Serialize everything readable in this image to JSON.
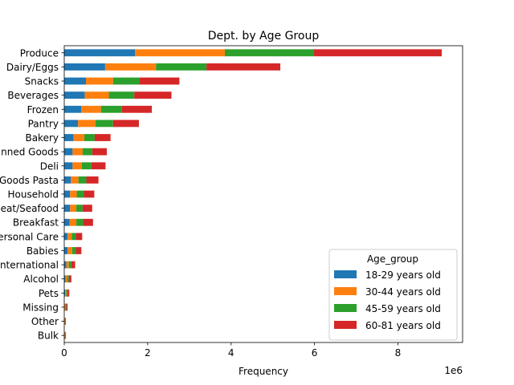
{
  "chart_data": {
    "type": "bar",
    "orientation": "horizontal",
    "stacked": true,
    "title": "Dept. by Age Group",
    "xlabel": "Frequency",
    "ylabel": "",
    "x_offset_label": "1e6",
    "xlim": [
      0,
      9.55
    ],
    "x_ticks": [
      0,
      2,
      4,
      6,
      8
    ],
    "grid": false,
    "legend": {
      "title": "Age_group",
      "placement": "lower-right"
    },
    "categories": [
      "Produce",
      "Dairy/Eggs",
      "Snacks",
      "Beverages",
      "Frozen",
      "Pantry",
      "Bakery",
      "Canned Goods",
      "Deli",
      "Dry Goods Pasta",
      "Household",
      "Meat/Seafood",
      "Breakfast",
      "Personal Care",
      "Babies",
      "International",
      "Alcohol",
      "Pets",
      "Missing",
      "Other",
      "Bulk"
    ],
    "series": [
      {
        "name": "18-29 years old",
        "color": "#1f77b4",
        "values": [
          1.7,
          0.98,
          0.52,
          0.49,
          0.41,
          0.33,
          0.22,
          0.2,
          0.2,
          0.16,
          0.14,
          0.14,
          0.13,
          0.08,
          0.08,
          0.05,
          0.03,
          0.02,
          0.01,
          0.01,
          0.01
        ]
      },
      {
        "name": "30-44 years old",
        "color": "#ff7f0e",
        "values": [
          2.15,
          1.22,
          0.65,
          0.58,
          0.47,
          0.42,
          0.26,
          0.24,
          0.22,
          0.18,
          0.16,
          0.15,
          0.16,
          0.1,
          0.11,
          0.06,
          0.04,
          0.03,
          0.02,
          0.01,
          0.01
        ]
      },
      {
        "name": "45-59 years old",
        "color": "#2ca02c",
        "values": [
          2.13,
          1.21,
          0.64,
          0.61,
          0.5,
          0.42,
          0.25,
          0.23,
          0.23,
          0.19,
          0.17,
          0.15,
          0.16,
          0.1,
          0.09,
          0.06,
          0.04,
          0.03,
          0.02,
          0.01,
          0.01
        ]
      },
      {
        "name": "60-81 years old",
        "color": "#d62728",
        "values": [
          3.07,
          1.77,
          0.95,
          0.89,
          0.72,
          0.62,
          0.38,
          0.35,
          0.34,
          0.29,
          0.25,
          0.23,
          0.24,
          0.15,
          0.13,
          0.09,
          0.06,
          0.04,
          0.03,
          0.01,
          0.01
        ]
      }
    ]
  }
}
